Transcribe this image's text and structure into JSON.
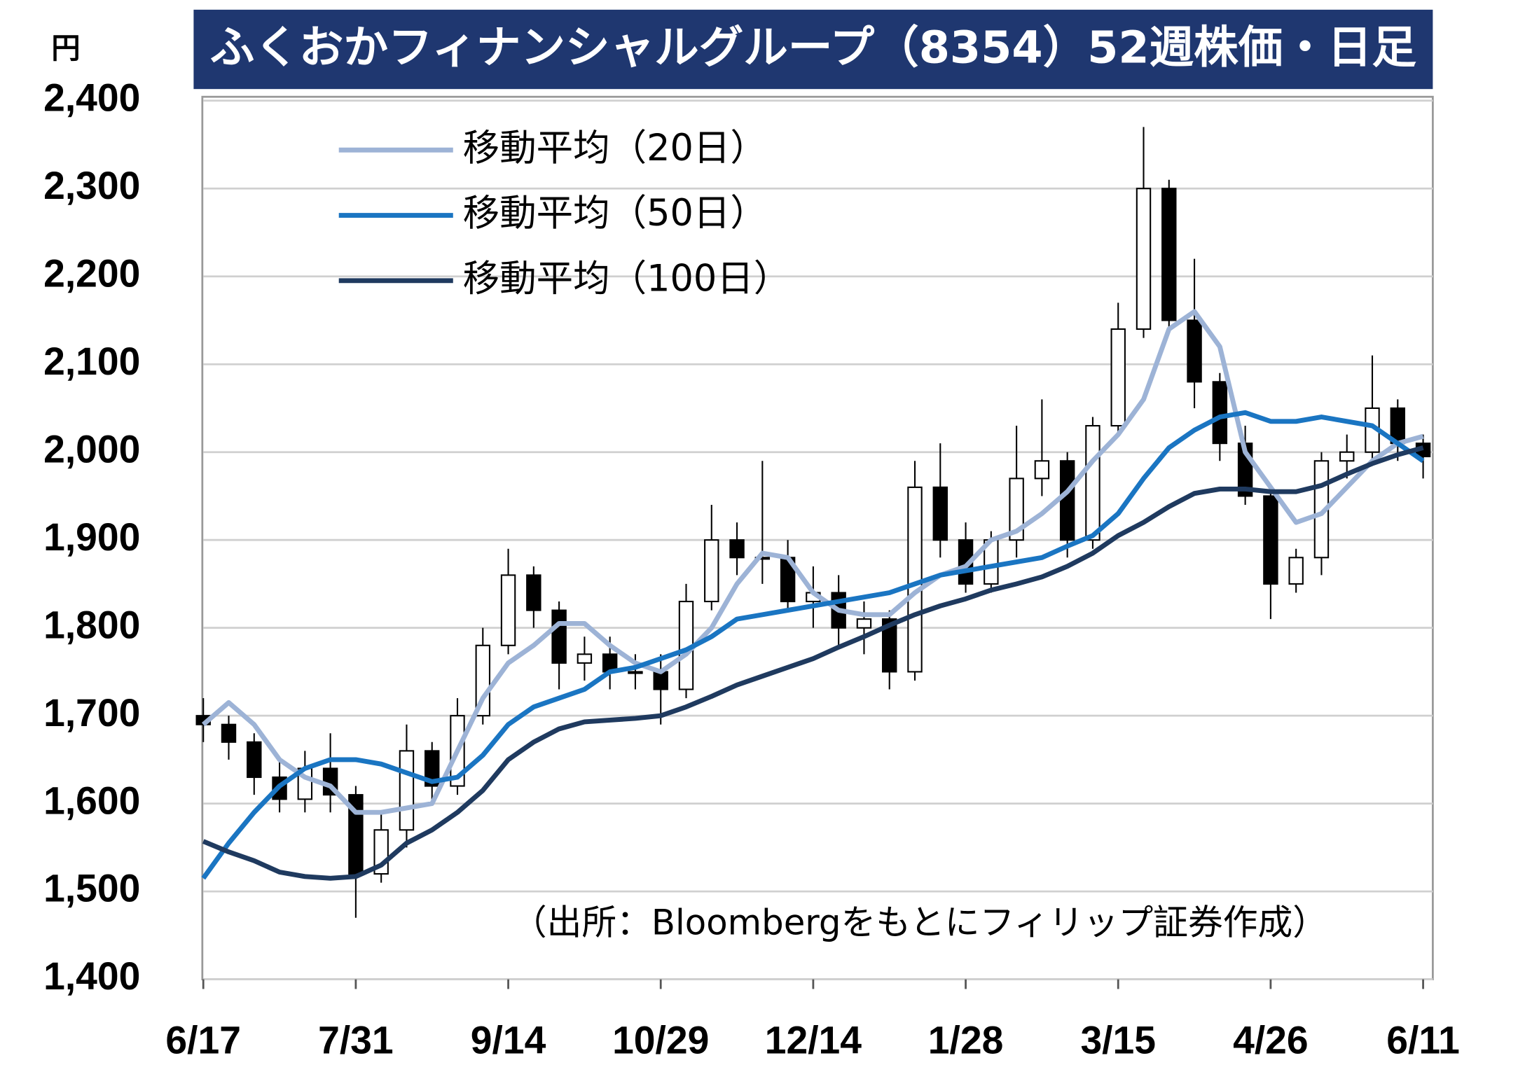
{
  "chart_data": {
    "type": "candlestick",
    "title": "ふくおかフィナンシャルグループ（8354）52週株価・日足",
    "y_unit": "円",
    "source": "（出所：Bloombergをもとにフィリップ証券作成）",
    "categories": [
      "6/17",
      null,
      null,
      null,
      null,
      null,
      "7/31",
      null,
      null,
      null,
      null,
      null,
      "9/14",
      null,
      null,
      null,
      null,
      null,
      "10/29",
      null,
      null,
      null,
      null,
      null,
      "12/14",
      null,
      null,
      null,
      null,
      null,
      "1/28",
      null,
      null,
      null,
      null,
      null,
      "3/15",
      null,
      null,
      null,
      null,
      null,
      "4/26",
      null,
      null,
      null,
      null,
      null,
      "6/11"
    ],
    "open": [
      1700,
      1690,
      1670,
      1630,
      1605,
      1640,
      1610,
      1520,
      1570,
      1660,
      1620,
      1700,
      1780,
      1860,
      1820,
      1760,
      1770,
      1750,
      1750,
      1730,
      1830,
      1900,
      1880,
      1880,
      1830,
      1840,
      1800,
      1810,
      1750,
      1960,
      1900,
      1850,
      1900,
      1970,
      1990,
      1900,
      2030,
      2140,
      2300,
      2150,
      2080,
      2010,
      1950,
      1850,
      1880,
      1990,
      2000,
      2050,
      2010
    ],
    "high": [
      1720,
      1700,
      1680,
      1650,
      1660,
      1680,
      1620,
      1590,
      1690,
      1670,
      1720,
      1800,
      1890,
      1870,
      1830,
      1790,
      1790,
      1770,
      1770,
      1850,
      1940,
      1920,
      1990,
      1900,
      1870,
      1860,
      1830,
      1820,
      1990,
      2010,
      1920,
      1910,
      2030,
      2060,
      2000,
      2040,
      2170,
      2370,
      2310,
      2220,
      2090,
      2030,
      1960,
      1890,
      2000,
      2020,
      2110,
      2060,
      2020
    ],
    "low": [
      1670,
      1650,
      1610,
      1590,
      1590,
      1590,
      1470,
      1510,
      1550,
      1600,
      1610,
      1690,
      1770,
      1800,
      1730,
      1740,
      1730,
      1730,
      1690,
      1720,
      1820,
      1860,
      1850,
      1820,
      1800,
      1780,
      1770,
      1730,
      1740,
      1880,
      1840,
      1840,
      1880,
      1950,
      1880,
      1890,
      2020,
      2130,
      2140,
      2050,
      1990,
      1940,
      1810,
      1840,
      1860,
      1970,
      1990,
      1990,
      1970
    ],
    "close": [
      1690,
      1670,
      1630,
      1605,
      1640,
      1610,
      1520,
      1570,
      1660,
      1620,
      1700,
      1780,
      1860,
      1820,
      1760,
      1770,
      1750,
      1750,
      1730,
      1830,
      1900,
      1880,
      1880,
      1830,
      1840,
      1800,
      1810,
      1750,
      1960,
      1900,
      1850,
      1900,
      1970,
      1990,
      1900,
      2030,
      2140,
      2300,
      2150,
      2080,
      2010,
      1950,
      1850,
      1880,
      1990,
      2000,
      2050,
      2010,
      1995
    ],
    "up_color": "#ffffff",
    "down_color": "#000000",
    "series": [
      {
        "name": "移動平均（20日）",
        "color": "#9db3d6",
        "values": [
          1690,
          1715,
          1690,
          1650,
          1630,
          1620,
          1590,
          1590,
          1595,
          1600,
          1660,
          1720,
          1760,
          1780,
          1805,
          1805,
          1780,
          1760,
          1750,
          1770,
          1800,
          1850,
          1885,
          1880,
          1840,
          1820,
          1815,
          1815,
          1840,
          1860,
          1870,
          1900,
          1910,
          1930,
          1955,
          1990,
          2020,
          2060,
          2140,
          2160,
          2120,
          2000,
          1960,
          1920,
          1930,
          1960,
          1990,
          2010,
          2018
        ]
      },
      {
        "name": "移動平均（50日）",
        "color": "#1a75c2",
        "values": [
          1515,
          1555,
          1590,
          1620,
          1640,
          1650,
          1650,
          1645,
          1635,
          1625,
          1630,
          1655,
          1690,
          1710,
          1720,
          1730,
          1750,
          1755,
          1765,
          1775,
          1790,
          1810,
          1815,
          1820,
          1825,
          1830,
          1835,
          1840,
          1850,
          1860,
          1865,
          1870,
          1875,
          1880,
          1893,
          1905,
          1930,
          1970,
          2005,
          2025,
          2040,
          2045,
          2035,
          2035,
          2040,
          2035,
          2030,
          2010,
          1990
        ]
      },
      {
        "name": "移動平均（100日）",
        "color": "#1f3a5f",
        "values": [
          1557,
          1545,
          1535,
          1522,
          1517,
          1515,
          1517,
          1530,
          1555,
          1570,
          1590,
          1615,
          1650,
          1670,
          1685,
          1693,
          1695,
          1697,
          1700,
          1710,
          1722,
          1735,
          1745,
          1755,
          1765,
          1778,
          1790,
          1803,
          1815,
          1825,
          1833,
          1843,
          1850,
          1858,
          1870,
          1885,
          1905,
          1920,
          1938,
          1953,
          1958,
          1958,
          1955,
          1955,
          1962,
          1975,
          1987,
          1997,
          2005
        ]
      }
    ],
    "ylim": [
      1400,
      2400
    ],
    "yticks": [
      {
        "value": 1400,
        "label": "1,400"
      },
      {
        "value": 1500,
        "label": "1,500"
      },
      {
        "value": 1600,
        "label": "1,600"
      },
      {
        "value": 1700,
        "label": "1,700"
      },
      {
        "value": 1800,
        "label": "1,800"
      },
      {
        "value": 1900,
        "label": "1,900"
      },
      {
        "value": 2000,
        "label": "2,000"
      },
      {
        "value": 2100,
        "label": "2,100"
      },
      {
        "value": 2200,
        "label": "2,200"
      },
      {
        "value": 2300,
        "label": "2,300"
      },
      {
        "value": 2400,
        "label": "2,400"
      }
    ],
    "grid": true
  }
}
